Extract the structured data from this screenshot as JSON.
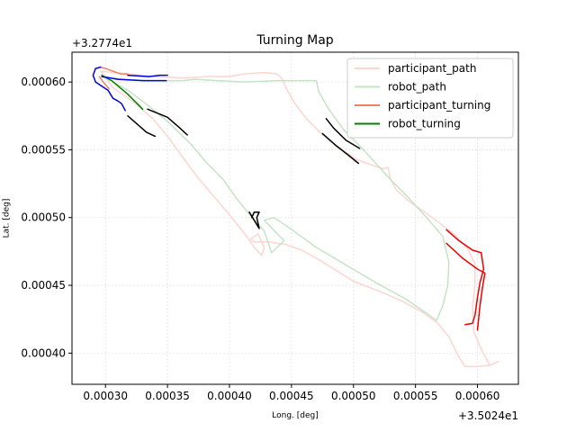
{
  "chart_data": {
    "type": "line",
    "title": "Turning Map",
    "xlabel": "Long. [deg]",
    "ylabel": "Lat. [deg]",
    "x_offset_label": "+3.5024e1",
    "y_offset_label": "+3.2774e1",
    "xlim": [
      0.000273,
      0.000633
    ],
    "ylim": [
      0.000377,
      0.000622
    ],
    "x_ticks": [
      0.0003,
      0.00035,
      0.0004,
      0.00045,
      0.0005,
      0.00055,
      0.0006
    ],
    "x_tick_labels": [
      "0.00030",
      "0.00035",
      "0.00040",
      "0.00045",
      "0.00050",
      "0.00055",
      "0.00060"
    ],
    "y_ticks": [
      0.0004,
      0.00045,
      0.0005,
      0.00055,
      0.0006
    ],
    "y_tick_labels": [
      "0.00040",
      "0.00045",
      "0.00050",
      "0.00055",
      "0.00060"
    ],
    "grid": true,
    "legend_position": "top-right",
    "colors": {
      "participant_path": "#fdd5cf",
      "robot_path": "#c5e3c5",
      "participant_turning": "#f08060",
      "robot_turning": "#008000",
      "turn_blue": "#0000dd",
      "turn_black": "#000000",
      "turn_red": "#ee0000"
    },
    "series": [
      {
        "name": "participant_path",
        "role": "participant_path",
        "points": [
          [
            0.000296,
            0.000608
          ],
          [
            0.000318,
            0.000606
          ],
          [
            0.00034,
            0.000604
          ],
          [
            0.000362,
            0.000603
          ],
          [
            0.000384,
            0.000604
          ],
          [
            0.0004,
            0.000604
          ],
          [
            0.000412,
            0.000606
          ],
          [
            0.000428,
            0.000607
          ],
          [
            0.000438,
            0.000606
          ],
          [
            0.000442,
            0.000603
          ],
          [
            0.000446,
            0.000595
          ],
          [
            0.000452,
            0.000585
          ],
          [
            0.000462,
            0.000573
          ],
          [
            0.000474,
            0.000562
          ],
          [
            0.000488,
            0.000552
          ],
          [
            0.000502,
            0.000543
          ],
          [
            0.000514,
            0.000539
          ],
          [
            0.000524,
            0.000536
          ],
          [
            0.000528,
            0.000537
          ],
          [
            0.00053,
            0.000528
          ],
          [
            0.000535,
            0.00052
          ],
          [
            0.000545,
            0.000512
          ],
          [
            0.000556,
            0.000505
          ],
          [
            0.000568,
            0.000497
          ],
          [
            0.000582,
            0.000487
          ],
          [
            0.000592,
            0.000477
          ],
          [
            0.000598,
            0.000466
          ],
          [
            0.000598,
            0.00045
          ],
          [
            0.000596,
            0.000434
          ],
          [
            0.000597,
            0.000416
          ],
          [
            0.000603,
            0.000403
          ],
          [
            0.00061,
            0.000391
          ],
          [
            0.000617,
            0.000394
          ],
          [
            0.00061,
            0.000391
          ],
          [
            0.000598,
            0.00039
          ],
          [
            0.00059,
            0.00039
          ],
          [
            0.000585,
            0.000397
          ],
          [
            0.000577,
            0.000412
          ],
          [
            0.000568,
            0.000422
          ],
          [
            0.000556,
            0.00043
          ],
          [
            0.00054,
            0.000438
          ],
          [
            0.00052,
            0.000446
          ],
          [
            0.0005,
            0.000453
          ],
          [
            0.000486,
            0.000461
          ],
          [
            0.000472,
            0.000469
          ],
          [
            0.000458,
            0.000476
          ],
          [
            0.000446,
            0.00048
          ],
          [
            0.000432,
            0.000482
          ],
          [
            0.00042,
            0.000482
          ],
          [
            0.000417,
            0.000484
          ],
          [
            0.000423,
            0.000488
          ],
          [
            0.000428,
            0.000478
          ],
          [
            0.000426,
            0.000472
          ],
          [
            0.00042,
            0.000478
          ],
          [
            0.000414,
            0.000486
          ],
          [
            0.0004,
            0.000502
          ],
          [
            0.000388,
            0.000515
          ],
          [
            0.000374,
            0.00053
          ],
          [
            0.000362,
            0.000545
          ],
          [
            0.00035,
            0.00056
          ],
          [
            0.000338,
            0.000573
          ],
          [
            0.000323,
            0.000585
          ],
          [
            0.000306,
            0.000596
          ],
          [
            0.000296,
            0.000608
          ]
        ]
      },
      {
        "name": "robot_path",
        "role": "robot_path",
        "points": [
          [
            0.000298,
            0.000604
          ],
          [
            0.000314,
            0.000602
          ],
          [
            0.000335,
            0.000601
          ],
          [
            0.000362,
            0.000601
          ],
          [
            0.000372,
            0.000602
          ],
          [
            0.00039,
            0.000601
          ],
          [
            0.000412,
            0.0006
          ],
          [
            0.00044,
            0.000601
          ],
          [
            0.00046,
            0.000601
          ],
          [
            0.00047,
            0.000601
          ],
          [
            0.000472,
            0.000593
          ],
          [
            0.00048,
            0.00058
          ],
          [
            0.000492,
            0.000565
          ],
          [
            0.000506,
            0.000552
          ],
          [
            0.000518,
            0.00054
          ],
          [
            0.00053,
            0.000528
          ],
          [
            0.000544,
            0.000515
          ],
          [
            0.000558,
            0.000501
          ],
          [
            0.000572,
            0.000486
          ],
          [
            0.000577,
            0.000467
          ],
          [
            0.000576,
            0.00045
          ],
          [
            0.000572,
            0.000435
          ],
          [
            0.000567,
            0.000424
          ],
          [
            0.000558,
            0.00043
          ],
          [
            0.000542,
            0.00044
          ],
          [
            0.000518,
            0.000452
          ],
          [
            0.000494,
            0.000465
          ],
          [
            0.00047,
            0.000478
          ],
          [
            0.000452,
            0.00049
          ],
          [
            0.000436,
            0.0005
          ],
          [
            0.000428,
            0.000498
          ],
          [
            0.000444,
            0.000483
          ],
          [
            0.000434,
            0.000474
          ],
          [
            0.000428,
            0.00049
          ],
          [
            0.000418,
            0.0005
          ],
          [
            0.000405,
            0.000515
          ],
          [
            0.000395,
            0.000528
          ],
          [
            0.000382,
            0.00054
          ],
          [
            0.000368,
            0.000555
          ],
          [
            0.00035,
            0.000571
          ],
          [
            0.000334,
            0.000583
          ],
          [
            0.000318,
            0.000594
          ],
          [
            0.000298,
            0.000604
          ]
        ]
      },
      {
        "name": "participant_turning",
        "role": "participant_turning",
        "points": [
          [
            0.000296,
            0.000611
          ],
          [
            0.0003,
            0.00061
          ],
          [
            0.000306,
            0.000608
          ],
          [
            0.000312,
            0.000606
          ],
          [
            0.000318,
            0.000606
          ]
        ]
      },
      {
        "name": "participant_turning",
        "role": "participant_turning",
        "points": [
          [
            0.000295,
            0.000604
          ],
          [
            0.000299,
            0.000599
          ],
          [
            0.000303,
            0.000595
          ]
        ]
      },
      {
        "name": "robot_turning",
        "role": "robot_turning",
        "points": [
          [
            0.000297,
            0.000605
          ],
          [
            0.000305,
            0.000601
          ],
          [
            0.000318,
            0.000591
          ],
          [
            0.00033,
            0.00058
          ]
        ]
      },
      {
        "role": "turn_blue",
        "points": [
          [
            0.000296,
            0.000611
          ],
          [
            0.000292,
            0.00061
          ],
          [
            0.00029,
            0.000605
          ],
          [
            0.000292,
            0.0006
          ],
          [
            0.000297,
            0.000597
          ],
          [
            0.000302,
            0.000594
          ],
          [
            0.000306,
            0.000588
          ],
          [
            0.00031,
            0.000586
          ],
          [
            0.000313,
            0.000584
          ],
          [
            0.000316,
            0.000579
          ]
        ]
      },
      {
        "role": "turn_blue",
        "points": [
          [
            0.000318,
            0.000605
          ],
          [
            0.000335,
            0.000604
          ],
          [
            0.000344,
            0.000605
          ],
          [
            0.00035,
            0.000605
          ]
        ]
      },
      {
        "role": "turn_blue",
        "points": [
          [
            0.000297,
            0.000604
          ],
          [
            0.00031,
            0.000602
          ],
          [
            0.00033,
            0.000601
          ],
          [
            0.000349,
            0.000601
          ]
        ]
      },
      {
        "role": "turn_black",
        "points": [
          [
            0.000318,
            0.000575
          ],
          [
            0.000328,
            0.000567
          ],
          [
            0.000333,
            0.000563
          ],
          [
            0.00034,
            0.00056
          ]
        ]
      },
      {
        "role": "turn_black",
        "points": [
          [
            0.000334,
            0.00058
          ],
          [
            0.00035,
            0.000574
          ],
          [
            0.00036,
            0.000566
          ],
          [
            0.000366,
            0.000561
          ]
        ]
      },
      {
        "role": "turn_black",
        "points": [
          [
            0.000416,
            0.000504
          ],
          [
            0.00042,
            0.000498
          ],
          [
            0.000424,
            0.000492
          ],
          [
            0.000422,
            0.0005
          ],
          [
            0.000424,
            0.000504
          ],
          [
            0.00042,
            0.000504
          ],
          [
            0.000418,
            0.0005
          ]
        ]
      },
      {
        "role": "turn_black",
        "points": [
          [
            0.000478,
            0.000573
          ],
          [
            0.000484,
            0.000566
          ],
          [
            0.000494,
            0.000557
          ],
          [
            0.000505,
            0.000551
          ]
        ]
      },
      {
        "role": "turn_black",
        "points": [
          [
            0.000475,
            0.000562
          ],
          [
            0.000486,
            0.000553
          ],
          [
            0.000496,
            0.000546
          ],
          [
            0.000504,
            0.00054
          ]
        ]
      },
      {
        "role": "turn_red",
        "points": [
          [
            0.000575,
            0.000491
          ],
          [
            0.000585,
            0.000483
          ],
          [
            0.000596,
            0.000476
          ],
          [
            0.000603,
            0.000474
          ],
          [
            0.000605,
            0.000462
          ],
          [
            0.000602,
            0.000452
          ],
          [
            0.0006,
            0.000441
          ],
          [
            0.000598,
            0.000428
          ],
          [
            0.000596,
            0.000422
          ],
          [
            0.00059,
            0.000421
          ]
        ]
      },
      {
        "role": "turn_red",
        "points": [
          [
            0.000575,
            0.000481
          ],
          [
            0.000588,
            0.00047
          ],
          [
            0.0006,
            0.000462
          ],
          [
            0.000606,
            0.000459
          ],
          [
            0.000604,
            0.000448
          ],
          [
            0.000602,
            0.000435
          ],
          [
            0.0006,
            0.000417
          ]
        ]
      }
    ],
    "legend": [
      {
        "label": "participant_path",
        "color_key": "participant_path"
      },
      {
        "label": "robot_path",
        "color_key": "robot_path"
      },
      {
        "label": "participant_turning",
        "color_key": "participant_turning"
      },
      {
        "label": "robot_turning",
        "color_key": "robot_turning"
      }
    ]
  }
}
